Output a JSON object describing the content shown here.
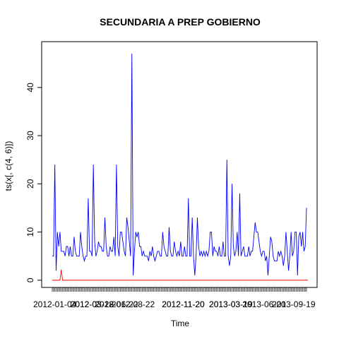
{
  "chart_data": {
    "type": "line",
    "title": "SECUNDARIA A PREP GOBIERNO",
    "xlabel": "Time",
    "ylabel": "ts(x[, c(4, 6)])",
    "ylim": [
      -1.5,
      49.5
    ],
    "yticks": [
      0,
      10,
      20,
      30,
      40
    ],
    "xtick_labels": [
      "2012-01-04",
      "2012-03-28",
      "2012-08-22",
      "2012-11-20",
      "2013-03-19",
      "2013-09-19"
    ],
    "xtick_label_index": [
      2,
      31,
      63,
      102,
      139,
      188
    ],
    "xtick_label_overlap": [
      "2012-03-28",
      "2012-06-22",
      "2012-11-20",
      "2013-03-19",
      "2013-06-20"
    ],
    "xtick_label_overlap_index": [
      31,
      50,
      102,
      139,
      165
    ],
    "grid": false,
    "legend": "none",
    "series": [
      {
        "color": "#0000FF",
        "values": [
          5,
          5,
          24,
          2,
          10,
          7,
          10,
          6,
          6,
          6,
          5,
          7,
          7,
          5,
          7,
          5,
          5,
          9,
          6,
          5,
          5,
          5,
          10,
          7,
          5,
          4,
          5,
          5,
          17,
          6,
          6,
          5,
          24,
          8,
          5,
          6,
          8,
          7,
          7,
          6,
          6,
          13,
          7,
          5,
          5,
          7,
          6,
          6,
          9,
          5,
          24,
          7,
          5,
          10,
          10,
          8,
          6,
          5,
          13,
          11,
          8,
          5,
          47,
          1,
          6,
          10,
          9,
          10,
          7,
          7,
          5,
          6,
          5,
          5,
          5,
          4,
          6,
          5,
          7,
          5,
          4,
          5,
          6,
          6,
          5,
          5,
          10,
          7,
          6,
          5,
          5,
          11,
          6,
          5,
          5,
          8,
          6,
          5,
          6,
          5,
          8,
          5,
          5,
          7,
          5,
          5,
          17,
          5,
          5,
          13,
          5,
          1,
          5,
          13,
          7,
          5,
          6,
          5,
          6,
          5,
          6,
          5,
          6,
          10,
          10,
          5,
          7,
          6,
          6,
          5,
          7,
          5,
          5,
          8,
          5,
          5,
          25,
          5,
          3,
          5,
          20,
          7,
          5,
          6,
          10,
          5,
          18,
          5,
          6,
          7,
          5,
          5,
          5,
          7,
          5,
          6,
          6,
          9,
          12,
          10,
          10,
          8,
          6,
          5,
          6,
          6,
          4,
          5,
          1,
          5,
          9,
          8,
          5,
          4,
          4,
          4,
          6,
          5,
          6,
          5,
          3,
          5,
          10,
          6,
          2,
          5,
          10,
          5,
          6,
          10,
          10,
          1,
          9,
          10,
          7,
          10,
          6,
          7,
          15
        ]
      },
      {
        "color": "#FF0000",
        "values": [
          0,
          0,
          0,
          0,
          0,
          0,
          0,
          2.2,
          0,
          0,
          0,
          0,
          0,
          0,
          0,
          0,
          0,
          0,
          0,
          0,
          0,
          0,
          0,
          0,
          0,
          0,
          0,
          0,
          0,
          0,
          0,
          0,
          0,
          0,
          0,
          0,
          0,
          0,
          0,
          0,
          0,
          0,
          0,
          0,
          0,
          0,
          0,
          0,
          0,
          0,
          0,
          0,
          0,
          0,
          0,
          0,
          0,
          0,
          0,
          0,
          0,
          0,
          0,
          0,
          0,
          0,
          0,
          0,
          0,
          0,
          0,
          0,
          0,
          0,
          0,
          0,
          0,
          0,
          0,
          0,
          0,
          0,
          0,
          0,
          0,
          0,
          0,
          0,
          0,
          0,
          0,
          0,
          0,
          0,
          0,
          0,
          0,
          0,
          0,
          0,
          0,
          0,
          0,
          0,
          0,
          0,
          0,
          0,
          0,
          0,
          0,
          0,
          0,
          0,
          0,
          0,
          0,
          0,
          0,
          0,
          0,
          0,
          0,
          0,
          0,
          0,
          0,
          0,
          0,
          0,
          0,
          0,
          0,
          0,
          0,
          0,
          0,
          0,
          0,
          0,
          0,
          0,
          0,
          0,
          0,
          0,
          0,
          0,
          0,
          0,
          0,
          0,
          0,
          0,
          0,
          0,
          0,
          0,
          0,
          0,
          0,
          0,
          0,
          0,
          0,
          0,
          0,
          0,
          0,
          0,
          0,
          0,
          0,
          0,
          0,
          0,
          0,
          0,
          0,
          0,
          0,
          0,
          0,
          0,
          0,
          0,
          0,
          0,
          0,
          0,
          0,
          0,
          0,
          0,
          0,
          0,
          0,
          0,
          0,
          0
        ]
      }
    ]
  }
}
